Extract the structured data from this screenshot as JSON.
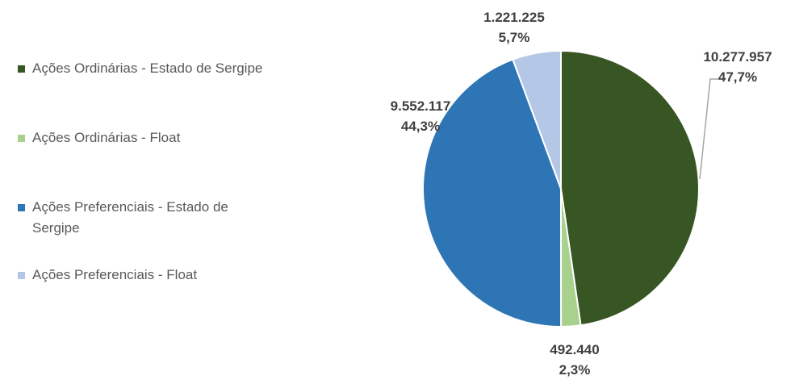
{
  "chart_data": {
    "type": "pie",
    "title": "",
    "legend_placement": "left",
    "slices": [
      {
        "label": "Ações Ordinárias - Estado de Sergipe",
        "value": 10277957,
        "value_label": "10.277.957",
        "percent_label": "47,7%",
        "color": "#375623"
      },
      {
        "label": "Ações Ordinárias - Float",
        "value": 492440,
        "value_label": "492.440",
        "percent_label": "2,3%",
        "color": "#A9D18E"
      },
      {
        "label": "Ações Preferenciais - Estado de Sergipe",
        "value": 9552117,
        "value_label": "9.552.117",
        "percent_label": "44,3%",
        "color": "#2E75B6"
      },
      {
        "label": "Ações Preferenciais - Float",
        "value": 1221225,
        "value_label": "1.221.225",
        "percent_label": "5,7%",
        "color": "#B4C7E7"
      }
    ]
  }
}
